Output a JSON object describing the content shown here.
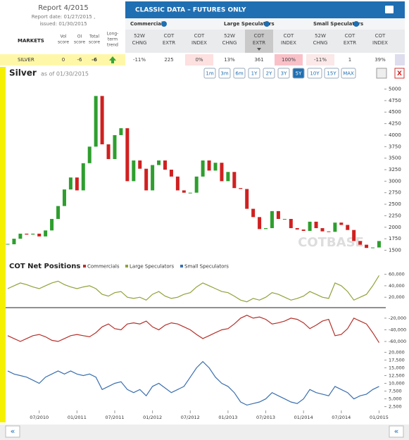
{
  "header": {
    "report_title": "Report 4/2015",
    "report_date": "Report date: 01/27/2015 ,",
    "issued": "issued: 01/30/2015",
    "banner": "CLASSIC DATA – FUTURES ONLY"
  },
  "table": {
    "groups": [
      "Commercials",
      "Large Speculators",
      "Small Speculators"
    ],
    "left_headers": [
      [
        "MARKETS"
      ],
      [
        "Vol",
        "score"
      ],
      [
        "OI",
        "score"
      ],
      [
        "Total",
        "score"
      ],
      [
        "Long-",
        "term",
        "trend"
      ]
    ],
    "columns": [
      [
        "52W",
        "CHNG"
      ],
      [
        "COT",
        "EXTR"
      ],
      [
        "COT",
        "INDEX"
      ],
      [
        "52W",
        "CHNG"
      ],
      [
        "COT",
        "EXTR"
      ],
      [
        "COT",
        "INDEX"
      ],
      [
        "52W",
        "CHNG"
      ],
      [
        "COT",
        "EXTR"
      ],
      [
        "COT",
        "INDEX"
      ]
    ],
    "sorted_column": 4,
    "row": {
      "market": "SILVER",
      "scores": [
        0,
        -6,
        -6
      ],
      "cells": [
        "-11%",
        "225",
        "0%",
        "13%",
        "361",
        "100%",
        "-11%",
        "1",
        "39%"
      ]
    }
  },
  "chart": {
    "title": "Silver",
    "subtitle": "as of 01/30/2015",
    "ranges": [
      "1m",
      "3m",
      "6m",
      "1Y",
      "2Y",
      "3Y",
      "5Y",
      "10Y",
      "15Y",
      "MAX"
    ],
    "active_range": 6,
    "close_button": "X",
    "watermark": "COTBASE",
    "price": {
      "values": [
        1630,
        1750,
        1860,
        1840,
        1860,
        1800,
        1930,
        2180,
        2460,
        2820,
        3080,
        2800,
        3390,
        3750,
        4850,
        3800,
        3480,
        4000,
        4150,
        3000,
        3450,
        3270,
        2800,
        3350,
        3450,
        3250,
        3100,
        2800,
        2750,
        2750,
        3100,
        3450,
        3230,
        3400,
        3000,
        3200,
        2850,
        2830,
        2400,
        2220,
        1960,
        1980,
        2350,
        2180,
        2180,
        1980,
        1950,
        1920,
        2120,
        1980,
        1910,
        1900,
        2100,
        2050,
        1940,
        1700,
        1620,
        1550,
        1560,
        1700
      ],
      "up_color": "#2e9e2e",
      "down_color": "#d02020",
      "ylim": [
        1400,
        5100
      ],
      "yticks": [
        1500,
        1750,
        2000,
        2250,
        2500,
        2750,
        3000,
        3250,
        3500,
        3750,
        4000,
        4250,
        4500,
        4750,
        5000
      ]
    },
    "x_labels": [
      "07/2010",
      "01/2011",
      "07/2011",
      "01/2012",
      "07/2012",
      "01/2013",
      "07/2013",
      "01/2014",
      "07/2014",
      "01/2015"
    ]
  },
  "cot": {
    "title": "COT Net Positions",
    "series": [
      {
        "name": "Commercials",
        "color": "#b5302a",
        "values": [
          -50000,
          -55000,
          -60000,
          -55000,
          -50000,
          -48000,
          -52000,
          -58000,
          -60000,
          -55000,
          -50000,
          -48000,
          -50000,
          -52000,
          -45000,
          -35000,
          -30000,
          -38000,
          -40000,
          -30000,
          -28000,
          -30000,
          -25000,
          -35000,
          -40000,
          -32000,
          -28000,
          -30000,
          -35000,
          -40000,
          -48000,
          -55000,
          -50000,
          -45000,
          -40000,
          -38000,
          -30000,
          -20000,
          -15000,
          -20000,
          -18000,
          -22000,
          -30000,
          -28000,
          -25000,
          -20000,
          -22000,
          -28000,
          -38000,
          -32000,
          -25000,
          -22000,
          -50000,
          -48000,
          -38000,
          -20000,
          -25000,
          -30000,
          -45000,
          -62000
        ],
        "ylim": [
          -66000,
          -8000
        ],
        "yticks": [
          {
            "value": -20000,
            "label": "-20,000"
          },
          {
            "value": -40000,
            "label": "-40,000"
          },
          {
            "value": -60000,
            "label": "-60,000"
          }
        ]
      },
      {
        "name": "Large Speculators",
        "color": "#8fa33a",
        "values": [
          35000,
          40000,
          45000,
          42000,
          38000,
          35000,
          40000,
          45000,
          48000,
          42000,
          38000,
          35000,
          38000,
          40000,
          35000,
          25000,
          22000,
          28000,
          30000,
          20000,
          18000,
          20000,
          15000,
          25000,
          30000,
          22000,
          18000,
          20000,
          25000,
          28000,
          38000,
          45000,
          40000,
          35000,
          30000,
          28000,
          22000,
          15000,
          12000,
          18000,
          15000,
          20000,
          28000,
          25000,
          20000,
          15000,
          18000,
          22000,
          30000,
          25000,
          20000,
          18000,
          45000,
          40000,
          30000,
          15000,
          20000,
          25000,
          40000,
          58000
        ],
        "ylim": [
          8000,
          62000
        ],
        "yticks": [
          {
            "value": 20000,
            "label": "20,000"
          },
          {
            "value": 40000,
            "label": "40,000"
          },
          {
            "value": 60000,
            "label": "60,000"
          }
        ]
      },
      {
        "name": "Small Speculators",
        "color": "#3a6fb0",
        "values": [
          14000,
          13000,
          12500,
          12000,
          11000,
          10000,
          12000,
          13000,
          14000,
          13000,
          14000,
          13000,
          12500,
          13000,
          12000,
          8000,
          9000,
          10000,
          10500,
          8000,
          7000,
          8000,
          6000,
          9000,
          10000,
          8500,
          7000,
          8000,
          9000,
          12000,
          15000,
          17000,
          15000,
          12000,
          10000,
          9000,
          7000,
          4000,
          3000,
          3500,
          4000,
          5000,
          7000,
          6000,
          5000,
          4000,
          3500,
          5000,
          8000,
          7000,
          6500,
          6000,
          9000,
          8000,
          7000,
          5000,
          6000,
          6500,
          8000,
          9000
        ],
        "ylim": [
          1500,
          21000
        ],
        "yticks": [
          {
            "value": 2500,
            "label": "2,500"
          },
          {
            "value": 5000,
            "label": "5,000"
          },
          {
            "value": 7500,
            "label": "7,500"
          },
          {
            "value": 10000,
            "label": "10,000"
          },
          {
            "value": 12500,
            "label": "12,500"
          },
          {
            "value": 15000,
            "label": "15,000"
          },
          {
            "value": 17500,
            "label": "17,500"
          },
          {
            "value": 20000,
            "label": "20,000"
          }
        ]
      }
    ]
  },
  "pager": {
    "prev": "«",
    "next": "«"
  }
}
